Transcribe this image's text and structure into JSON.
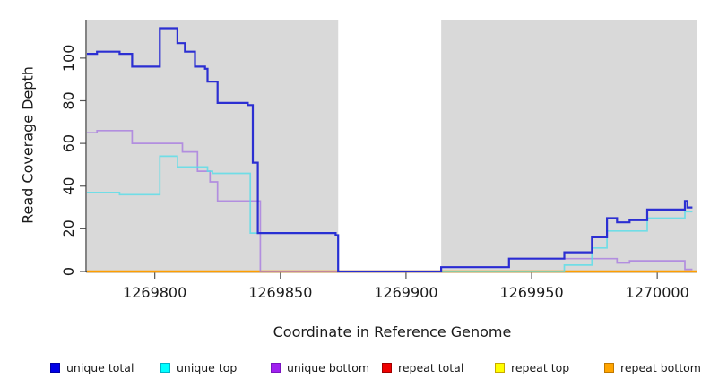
{
  "figure": {
    "background": "#ffffff",
    "panel_bg": "#d9d9d9",
    "axis_line_color": "#333333",
    "tick_color": "#555555"
  },
  "y_axis": {
    "label": "Read Coverage Depth",
    "ticks": [
      0,
      20,
      40,
      60,
      80,
      100
    ]
  },
  "x_axis": {
    "label": "Coordinate in Reference Genome",
    "ticks": [
      1269800,
      1269850,
      1269900,
      1269950,
      1270000
    ]
  },
  "legend": [
    {
      "label": "unique total",
      "fill": "#0000e6",
      "border": "#0000a8"
    },
    {
      "label": "unique top",
      "fill": "#00ffff",
      "border": "#00b4c8"
    },
    {
      "label": "unique bottom",
      "fill": "#a020f0",
      "border": "#7a14c0"
    },
    {
      "label": "repeat total",
      "fill": "#ee0000",
      "border": "#a00000"
    },
    {
      "label": "repeat top",
      "fill": "#ffff00",
      "border": "#c8a800"
    },
    {
      "label": "repeat bottom",
      "fill": "#ffa500",
      "border": "#c07800"
    }
  ],
  "chart_data": {
    "type": "line",
    "subtype": "step-coverage",
    "title": "",
    "xlabel": "Coordinate in Reference Genome",
    "ylabel": "Read Coverage Depth",
    "xlim": [
      1269773,
      1270016
    ],
    "ylim": [
      0,
      118
    ],
    "x_ticks": [
      1269800,
      1269850,
      1269900,
      1269950,
      1270000
    ],
    "y_ticks": [
      0,
      20,
      40,
      60,
      80,
      100
    ],
    "grid": false,
    "legend_position": "bottom",
    "coverage_panels": [
      [
        1269773,
        1269873
      ],
      [
        1269914,
        1270016
      ]
    ],
    "gap_region": [
      1269873,
      1269914
    ],
    "series": [
      {
        "name": "repeat total",
        "color": "#ee0000",
        "opacity": 1,
        "width": 1.5,
        "steps": [
          [
            1269773,
            0
          ]
        ],
        "end": 1270016
      },
      {
        "name": "repeat top",
        "color": "#ffff00",
        "opacity": 1,
        "width": 1.5,
        "steps": [
          [
            1269773,
            0
          ]
        ],
        "end": 1270016
      },
      {
        "name": "repeat bottom",
        "color": "#ff9e00",
        "opacity": 1,
        "width": 2.5,
        "steps": [
          [
            1269773,
            0
          ]
        ],
        "end": 1270016
      },
      {
        "name": "unique bottom",
        "color": "#a87ae0",
        "opacity": 0.8,
        "width": 1.7,
        "steps": [
          [
            1269773,
            65
          ],
          [
            1269777,
            66
          ],
          [
            1269791,
            60
          ],
          [
            1269811,
            56
          ],
          [
            1269817,
            47
          ],
          [
            1269822,
            42
          ],
          [
            1269825,
            33
          ],
          [
            1269842,
            0
          ],
          [
            1269914,
            2
          ],
          [
            1269941,
            6
          ],
          [
            1269984,
            4
          ],
          [
            1269989,
            5
          ],
          [
            1270011,
            1
          ]
        ],
        "end": 1270014
      },
      {
        "name": "unique top",
        "color": "#55dde8",
        "opacity": 0.8,
        "width": 1.7,
        "steps": [
          [
            1269773,
            37
          ],
          [
            1269786,
            36
          ],
          [
            1269802,
            54
          ],
          [
            1269809,
            49
          ],
          [
            1269821,
            47
          ],
          [
            1269823,
            46
          ],
          [
            1269838,
            18
          ],
          [
            1269872,
            17
          ],
          [
            1269873,
            0
          ],
          [
            1269963,
            3
          ],
          [
            1269974,
            11
          ],
          [
            1269980,
            19
          ],
          [
            1269996,
            25
          ],
          [
            1270011,
            28
          ]
        ],
        "end": 1270014
      },
      {
        "name": "unique total",
        "color": "#2326d2",
        "opacity": 0.95,
        "width": 2.2,
        "steps": [
          [
            1269773,
            102
          ],
          [
            1269777,
            103
          ],
          [
            1269786,
            102
          ],
          [
            1269791,
            96
          ],
          [
            1269802,
            114
          ],
          [
            1269809,
            107
          ],
          [
            1269812,
            103
          ],
          [
            1269816,
            96
          ],
          [
            1269820,
            95
          ],
          [
            1269821,
            89
          ],
          [
            1269825,
            79
          ],
          [
            1269837,
            78
          ],
          [
            1269839,
            51
          ],
          [
            1269841,
            18
          ],
          [
            1269872,
            17
          ],
          [
            1269873,
            0
          ],
          [
            1269914,
            2
          ],
          [
            1269941,
            6
          ],
          [
            1269963,
            9
          ],
          [
            1269974,
            16
          ],
          [
            1269980,
            25
          ],
          [
            1269984,
            23
          ],
          [
            1269989,
            24
          ],
          [
            1269996,
            29
          ],
          [
            1270011,
            33
          ],
          [
            1270012,
            30
          ]
        ],
        "end": 1270014
      }
    ]
  }
}
